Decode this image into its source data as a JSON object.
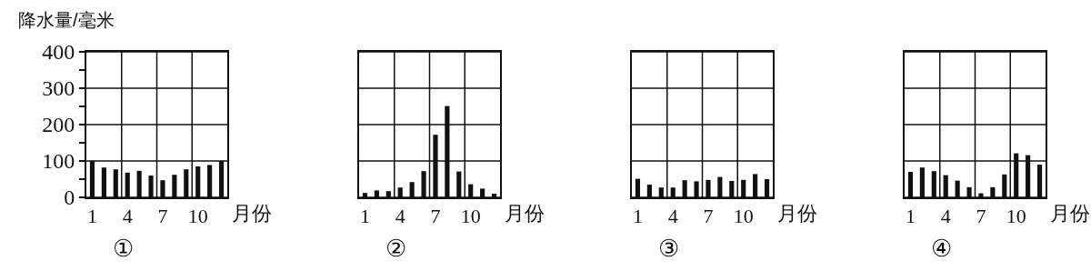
{
  "chart_data": [
    {
      "type": "bar",
      "title": "①",
      "xlabel": "月份",
      "ylabel": "降水量/毫米",
      "categories": [
        "1",
        null,
        null,
        "4",
        null,
        null,
        "7",
        null,
        null,
        "10",
        null,
        null
      ],
      "series": [
        {
          "color": "#111111",
          "values": [
            100,
            82,
            77,
            68,
            73,
            60,
            47,
            62,
            77,
            85,
            89,
            100
          ]
        }
      ],
      "ylim": [
        0,
        400
      ],
      "yticks": [
        0,
        {
          "value": 50,
          "label": null
        },
        100,
        {
          "value": 150,
          "label": null
        },
        200,
        {
          "value": 250,
          "label": null
        },
        300,
        {
          "value": 350,
          "label": null
        },
        400
      ],
      "grid": true
    },
    {
      "type": "bar",
      "title": "②",
      "xlabel": "月份",
      "categories": [
        "1",
        null,
        null,
        "4",
        null,
        null,
        "7",
        null,
        null,
        "10",
        null,
        null
      ],
      "series": [
        {
          "color": "#111111",
          "values": [
            12,
            19,
            17,
            27,
            42,
            72,
            172,
            251,
            71,
            36,
            24,
            10
          ]
        }
      ],
      "ylim": [
        0,
        400
      ],
      "yticks": [
        0,
        100,
        200,
        300,
        400
      ],
      "grid": true,
      "tick_labels": "x"
    },
    {
      "type": "bar",
      "title": "③",
      "xlabel": "月份",
      "categories": [
        "1",
        null,
        null,
        "4",
        null,
        null,
        "7",
        null,
        null,
        "10",
        null,
        null
      ],
      "series": [
        {
          "color": "#111111",
          "values": [
            51,
            35,
            27,
            27,
            47,
            44,
            48,
            56,
            45,
            48,
            64,
            50
          ]
        }
      ],
      "ylim": [
        0,
        400
      ],
      "yticks": [
        0,
        100,
        200,
        300,
        400
      ],
      "grid": true,
      "tick_labels": "x"
    },
    {
      "type": "bar",
      "title": "④",
      "xlabel": "月份",
      "categories": [
        "1",
        null,
        null,
        "4",
        null,
        null,
        "7",
        null,
        null,
        "10",
        null,
        null
      ],
      "series": [
        {
          "color": "#111111",
          "values": [
            70,
            82,
            72,
            61,
            46,
            28,
            11,
            28,
            63,
            121,
            116,
            90
          ]
        }
      ],
      "ylim": [
        0,
        400
      ],
      "yticks": [
        0,
        100,
        200,
        300,
        400
      ],
      "grid": true,
      "tick_labels": "x"
    }
  ]
}
